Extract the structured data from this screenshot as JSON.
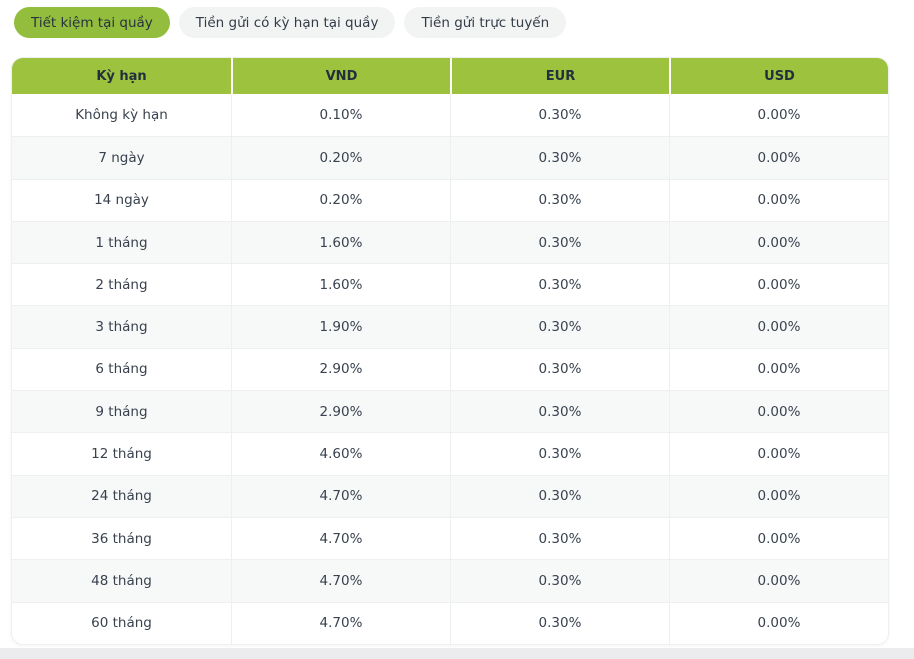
{
  "tabs": [
    {
      "label": "Tiết kiệm tại quầy",
      "active": true
    },
    {
      "label": "Tiền gửi có kỳ hạn tại quầy",
      "active": false
    },
    {
      "label": "Tiền gửi trực tuyến",
      "active": false
    }
  ],
  "colors": {
    "header_green": "#9cc23e",
    "active_tab_green": "#93be3d",
    "row_alt_gray": "#f7f8f8",
    "border_gray": "#edeff0",
    "text_dark": "#2b3440"
  },
  "table": {
    "headers": [
      "Kỳ hạn",
      "VND",
      "EUR",
      "USD"
    ],
    "rows": [
      {
        "term": "Không kỳ hạn",
        "vnd": "0.10%",
        "eur": "0.30%",
        "usd": "0.00%"
      },
      {
        "term": "7 ngày",
        "vnd": "0.20%",
        "eur": "0.30%",
        "usd": "0.00%"
      },
      {
        "term": "14 ngày",
        "vnd": "0.20%",
        "eur": "0.30%",
        "usd": "0.00%"
      },
      {
        "term": "1 tháng",
        "vnd": "1.60%",
        "eur": "0.30%",
        "usd": "0.00%"
      },
      {
        "term": "2 tháng",
        "vnd": "1.60%",
        "eur": "0.30%",
        "usd": "0.00%"
      },
      {
        "term": "3 tháng",
        "vnd": "1.90%",
        "eur": "0.30%",
        "usd": "0.00%"
      },
      {
        "term": "6 tháng",
        "vnd": "2.90%",
        "eur": "0.30%",
        "usd": "0.00%"
      },
      {
        "term": "9 tháng",
        "vnd": "2.90%",
        "eur": "0.30%",
        "usd": "0.00%"
      },
      {
        "term": "12 tháng",
        "vnd": "4.60%",
        "eur": "0.30%",
        "usd": "0.00%"
      },
      {
        "term": "24 tháng",
        "vnd": "4.70%",
        "eur": "0.30%",
        "usd": "0.00%"
      },
      {
        "term": "36 tháng",
        "vnd": "4.70%",
        "eur": "0.30%",
        "usd": "0.00%"
      },
      {
        "term": "48 tháng",
        "vnd": "4.70%",
        "eur": "0.30%",
        "usd": "0.00%"
      },
      {
        "term": "60 tháng",
        "vnd": "4.70%",
        "eur": "0.30%",
        "usd": "0.00%"
      }
    ]
  }
}
